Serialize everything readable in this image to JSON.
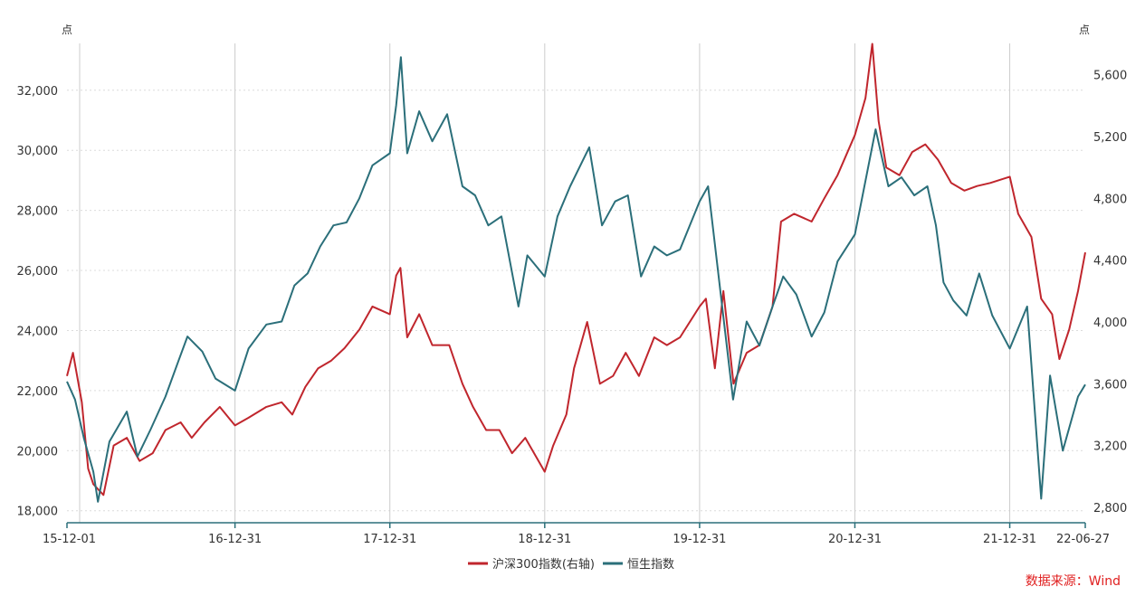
{
  "chart_data": {
    "type": "line",
    "title": "",
    "xlabel": "",
    "ylabel_left": "点",
    "ylabel_right": "点",
    "x_tick_labels": [
      "15-12-01",
      "16-12-31",
      "17-12-31",
      "18-12-31",
      "19-12-31",
      "20-12-31",
      "21-12-31",
      "22-06-27"
    ],
    "x_range": [
      "2015-12-01",
      "2022-06-27"
    ],
    "y_left": {
      "range": [
        17600,
        33800
      ],
      "ticks": [
        18000,
        20000,
        22000,
        24000,
        26000,
        28000,
        30000,
        32000
      ],
      "tick_labels": [
        "18,000",
        "20,000",
        "22,000",
        "24,000",
        "26,000",
        "28,000",
        "30,000",
        "32,000"
      ]
    },
    "y_right": {
      "range": [
        2700,
        5850
      ],
      "ticks": [
        2800,
        3200,
        3600,
        4000,
        4400,
        4800,
        5200,
        5600
      ],
      "tick_labels": [
        "2,800",
        "3,200",
        "3,600",
        "4,000",
        "4,400",
        "4,800",
        "5,200",
        "5,600"
      ]
    },
    "grid": {
      "horizontal": "dotted",
      "vertical": "at x ticks"
    },
    "legend_position": "bottom-center",
    "series": [
      {
        "name": "沪深300指数(右轴)",
        "axis": "right",
        "color": "#c0262d",
        "points": [
          [
            "2015-12-01",
            3650
          ],
          [
            "2015-12-15",
            3800
          ],
          [
            "2016-01-05",
            3480
          ],
          [
            "2016-01-20",
            3050
          ],
          [
            "2016-02-01",
            2950
          ],
          [
            "2016-02-25",
            2880
          ],
          [
            "2016-03-20",
            3200
          ],
          [
            "2016-04-20",
            3250
          ],
          [
            "2016-05-20",
            3100
          ],
          [
            "2016-06-20",
            3150
          ],
          [
            "2016-07-20",
            3300
          ],
          [
            "2016-08-25",
            3350
          ],
          [
            "2016-09-20",
            3250
          ],
          [
            "2016-10-20",
            3350
          ],
          [
            "2016-11-25",
            3450
          ],
          [
            "2016-12-31",
            3330
          ],
          [
            "2017-02-01",
            3380
          ],
          [
            "2017-03-15",
            3450
          ],
          [
            "2017-04-20",
            3480
          ],
          [
            "2017-05-15",
            3400
          ],
          [
            "2017-06-15",
            3580
          ],
          [
            "2017-07-15",
            3700
          ],
          [
            "2017-08-15",
            3750
          ],
          [
            "2017-09-15",
            3830
          ],
          [
            "2017-10-20",
            3950
          ],
          [
            "2017-11-20",
            4100
          ],
          [
            "2017-12-31",
            4050
          ],
          [
            "2018-01-15",
            4300
          ],
          [
            "2018-01-25",
            4350
          ],
          [
            "2018-02-10",
            3900
          ],
          [
            "2018-03-10",
            4050
          ],
          [
            "2018-04-10",
            3850
          ],
          [
            "2018-05-20",
            3850
          ],
          [
            "2018-06-20",
            3600
          ],
          [
            "2018-07-15",
            3450
          ],
          [
            "2018-08-15",
            3300
          ],
          [
            "2018-09-15",
            3300
          ],
          [
            "2018-10-15",
            3150
          ],
          [
            "2018-11-15",
            3250
          ],
          [
            "2018-12-31",
            3030
          ],
          [
            "2019-01-20",
            3200
          ],
          [
            "2019-02-20",
            3400
          ],
          [
            "2019-03-10",
            3700
          ],
          [
            "2019-04-10",
            4000
          ],
          [
            "2019-05-10",
            3600
          ],
          [
            "2019-06-10",
            3650
          ],
          [
            "2019-07-10",
            3800
          ],
          [
            "2019-08-10",
            3650
          ],
          [
            "2019-09-15",
            3900
          ],
          [
            "2019-10-15",
            3850
          ],
          [
            "2019-11-15",
            3900
          ],
          [
            "2019-12-31",
            4100
          ],
          [
            "2020-01-15",
            4150
          ],
          [
            "2020-02-05",
            3700
          ],
          [
            "2020-02-25",
            4200
          ],
          [
            "2020-03-20",
            3600
          ],
          [
            "2020-04-20",
            3800
          ],
          [
            "2020-05-20",
            3850
          ],
          [
            "2020-06-20",
            4100
          ],
          [
            "2020-07-10",
            4650
          ],
          [
            "2020-08-10",
            4700
          ],
          [
            "2020-09-20",
            4650
          ],
          [
            "2020-10-20",
            4800
          ],
          [
            "2020-11-20",
            4950
          ],
          [
            "2020-12-31",
            5210
          ],
          [
            "2021-01-25",
            5450
          ],
          [
            "2021-02-10",
            5800
          ],
          [
            "2021-02-25",
            5300
          ],
          [
            "2021-03-15",
            5000
          ],
          [
            "2021-04-15",
            4950
          ],
          [
            "2021-05-15",
            5100
          ],
          [
            "2021-06-15",
            5150
          ],
          [
            "2021-07-15",
            5050
          ],
          [
            "2021-08-15",
            4900
          ],
          [
            "2021-09-15",
            4850
          ],
          [
            "2021-10-15",
            4880
          ],
          [
            "2021-11-15",
            4900
          ],
          [
            "2021-12-31",
            4940
          ],
          [
            "2022-01-20",
            4700
          ],
          [
            "2022-02-20",
            4550
          ],
          [
            "2022-03-15",
            4150
          ],
          [
            "2022-04-10",
            4050
          ],
          [
            "2022-04-27",
            3760
          ],
          [
            "2022-05-20",
            3950
          ],
          [
            "2022-06-10",
            4200
          ],
          [
            "2022-06-27",
            4450
          ]
        ]
      },
      {
        "name": "恒生指数",
        "axis": "left",
        "color": "#2b6f7a",
        "points": [
          [
            "2015-12-01",
            22300
          ],
          [
            "2015-12-20",
            21700
          ],
          [
            "2016-01-10",
            20400
          ],
          [
            "2016-02-01",
            19300
          ],
          [
            "2016-02-12",
            18300
          ],
          [
            "2016-03-10",
            20300
          ],
          [
            "2016-04-20",
            21300
          ],
          [
            "2016-05-15",
            19800
          ],
          [
            "2016-06-15",
            20700
          ],
          [
            "2016-07-20",
            21800
          ],
          [
            "2016-08-20",
            23000
          ],
          [
            "2016-09-10",
            23800
          ],
          [
            "2016-10-15",
            23300
          ],
          [
            "2016-11-15",
            22400
          ],
          [
            "2016-12-31",
            22000
          ],
          [
            "2017-02-01",
            23400
          ],
          [
            "2017-03-15",
            24200
          ],
          [
            "2017-04-20",
            24300
          ],
          [
            "2017-05-20",
            25500
          ],
          [
            "2017-06-20",
            25900
          ],
          [
            "2017-07-20",
            26800
          ],
          [
            "2017-08-20",
            27500
          ],
          [
            "2017-09-20",
            27600
          ],
          [
            "2017-10-20",
            28400
          ],
          [
            "2017-11-20",
            29500
          ],
          [
            "2017-12-31",
            29900
          ],
          [
            "2018-01-15",
            31500
          ],
          [
            "2018-01-26",
            33100
          ],
          [
            "2018-02-10",
            29900
          ],
          [
            "2018-03-10",
            31300
          ],
          [
            "2018-04-10",
            30300
          ],
          [
            "2018-05-15",
            31200
          ],
          [
            "2018-06-20",
            28800
          ],
          [
            "2018-07-20",
            28500
          ],
          [
            "2018-08-20",
            27500
          ],
          [
            "2018-09-20",
            27800
          ],
          [
            "2018-10-30",
            24800
          ],
          [
            "2018-11-20",
            26500
          ],
          [
            "2018-12-31",
            25800
          ],
          [
            "2019-01-30",
            27800
          ],
          [
            "2019-03-01",
            28800
          ],
          [
            "2019-04-15",
            30100
          ],
          [
            "2019-05-15",
            27500
          ],
          [
            "2019-06-15",
            28300
          ],
          [
            "2019-07-15",
            28500
          ],
          [
            "2019-08-15",
            25800
          ],
          [
            "2019-09-15",
            26800
          ],
          [
            "2019-10-15",
            26500
          ],
          [
            "2019-11-15",
            26700
          ],
          [
            "2019-12-31",
            28300
          ],
          [
            "2020-01-20",
            28800
          ],
          [
            "2020-03-19",
            21700
          ],
          [
            "2020-04-20",
            24300
          ],
          [
            "2020-05-20",
            23500
          ],
          [
            "2020-06-20",
            24800
          ],
          [
            "2020-07-15",
            25800
          ],
          [
            "2020-08-15",
            25200
          ],
          [
            "2020-09-20",
            23800
          ],
          [
            "2020-10-20",
            24600
          ],
          [
            "2020-11-20",
            26300
          ],
          [
            "2020-12-31",
            27200
          ],
          [
            "2021-02-18",
            30700
          ],
          [
            "2021-03-20",
            28800
          ],
          [
            "2021-04-20",
            29100
          ],
          [
            "2021-05-20",
            28500
          ],
          [
            "2021-06-20",
            28800
          ],
          [
            "2021-07-10",
            27500
          ],
          [
            "2021-07-28",
            25600
          ],
          [
            "2021-08-20",
            25000
          ],
          [
            "2021-09-20",
            24500
          ],
          [
            "2021-10-20",
            25900
          ],
          [
            "2021-11-20",
            24500
          ],
          [
            "2021-12-31",
            23400
          ],
          [
            "2022-02-10",
            24800
          ],
          [
            "2022-03-15",
            18400
          ],
          [
            "2022-04-05",
            22500
          ],
          [
            "2022-05-05",
            20000
          ],
          [
            "2022-06-10",
            21800
          ],
          [
            "2022-06-27",
            22200
          ]
        ]
      }
    ],
    "source_note": "数据来源：Wind"
  },
  "colors": {
    "axis": "#2b6f7a",
    "grid": "#dcdcdc",
    "vgrid": "#cccccc",
    "source": "#e02020"
  }
}
